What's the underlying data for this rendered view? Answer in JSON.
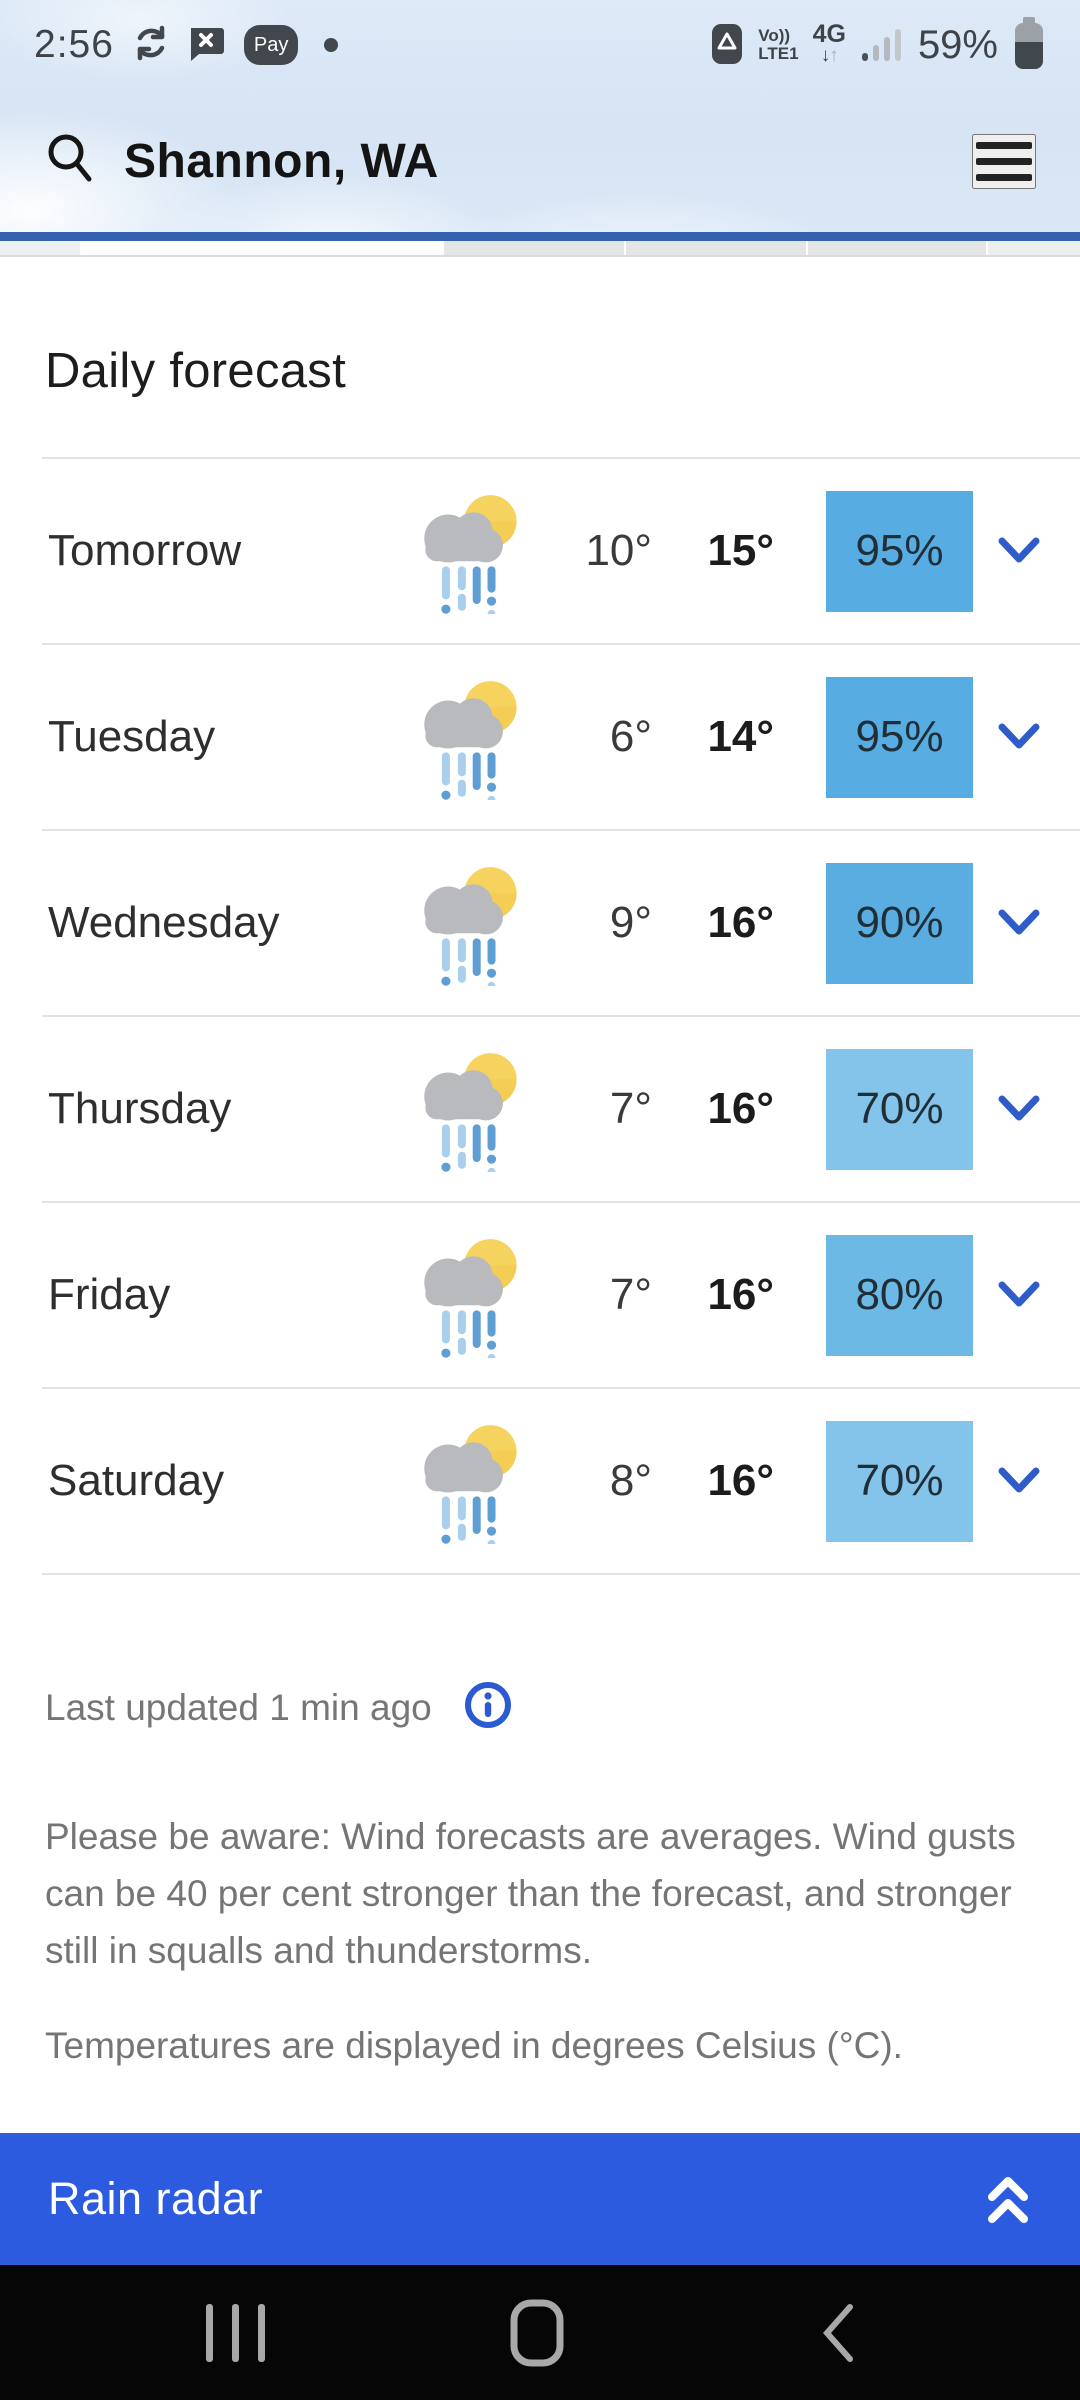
{
  "status_bar": {
    "time": "2:56",
    "pay_label": "Pay",
    "volte_line1": "Vo))",
    "volte_line2": "LTE1",
    "network_type": "4G",
    "battery_percent": "59%"
  },
  "header": {
    "location": "Shannon, WA"
  },
  "page": {
    "title": "Daily forecast"
  },
  "days": [
    {
      "label": "Tomorrow",
      "low": "10°",
      "high": "15°",
      "precip": "95%",
      "precip_color": "#57ace1"
    },
    {
      "label": "Tuesday",
      "low": "6°",
      "high": "14°",
      "precip": "95%",
      "precip_color": "#57ace1"
    },
    {
      "label": "Wednesday",
      "low": "9°",
      "high": "16°",
      "precip": "90%",
      "precip_color": "#59ade1"
    },
    {
      "label": "Thursday",
      "low": "7°",
      "high": "16°",
      "precip": "70%",
      "precip_color": "#84c4ea"
    },
    {
      "label": "Friday",
      "low": "7°",
      "high": "16°",
      "precip": "80%",
      "precip_color": "#6db9e6"
    },
    {
      "label": "Saturday",
      "low": "8°",
      "high": "16°",
      "precip": "70%",
      "precip_color": "#84c4ea"
    }
  ],
  "footer": {
    "last_updated": "Last updated 1 min ago",
    "wind_notice": "Please be aware: Wind forecasts are averages. Wind gusts can be 40 per cent stronger than the forecast, and stronger still in squalls and thunderstorms.",
    "temp_notice": "Temperatures are displayed in degrees Celsius (°C)."
  },
  "rain_radar": {
    "label": "Rain radar"
  },
  "colors": {
    "accent_blue": "#2f5cc9",
    "radar_bar_blue": "#2d5be0",
    "header_underline_blue": "#3561ae"
  }
}
